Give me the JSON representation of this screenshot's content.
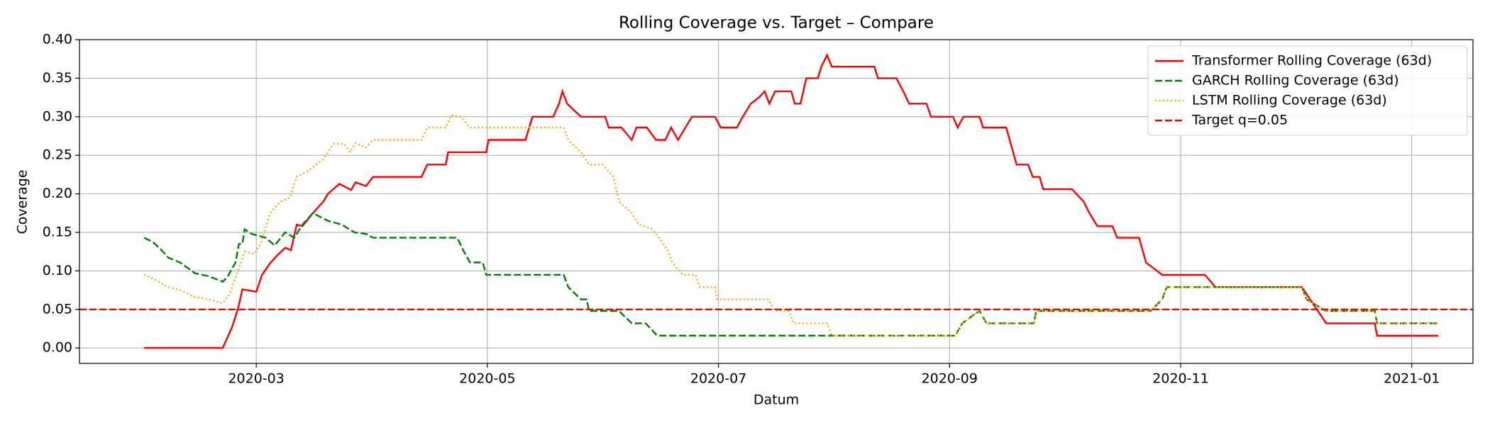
{
  "chart_data": {
    "type": "line",
    "title": "Rolling Coverage vs. Target – Compare",
    "xlabel": "Datum",
    "ylabel": "Coverage",
    "xlim": [
      1.47,
      13.53
    ],
    "xticks": [
      {
        "value": 3,
        "label": "2020-03"
      },
      {
        "value": 5,
        "label": "2020-05"
      },
      {
        "value": 7,
        "label": "2020-07"
      },
      {
        "value": 9,
        "label": "2020-09"
      },
      {
        "value": 11,
        "label": "2020-11"
      },
      {
        "value": 13,
        "label": "2021-01"
      }
    ],
    "ylim": [
      -0.02,
      0.4
    ],
    "yticks": [
      {
        "value": 0,
        "label": "0.00"
      },
      {
        "value": 0.05,
        "label": "0.05"
      },
      {
        "value": 0.1,
        "label": "0.10"
      },
      {
        "value": 0.15,
        "label": "0.15"
      },
      {
        "value": 0.2,
        "label": "0.20"
      },
      {
        "value": 0.25,
        "label": "0.25"
      },
      {
        "value": 0.3,
        "label": "0.30"
      },
      {
        "value": 0.35,
        "label": "0.35"
      },
      {
        "value": 0.4,
        "label": "0.40"
      }
    ],
    "grid": true,
    "legend": "upper right",
    "series": [
      {
        "name": "Transformer Rolling Coverage (63d)",
        "color": "#ff0000",
        "style": "solid",
        "x": [
          2.03,
          2.71,
          2.79,
          2.84,
          2.88,
          3.0,
          3.05,
          3.12,
          3.18,
          3.25,
          3.3,
          3.35,
          3.4,
          3.49,
          3.58,
          3.62,
          3.72,
          3.82,
          3.86,
          3.95,
          4.01,
          4.43,
          4.48,
          4.64,
          4.66,
          4.99,
          5.01,
          5.33,
          5.39,
          5.57,
          5.62,
          5.65,
          5.69,
          5.81,
          6.02,
          6.05,
          6.16,
          6.25,
          6.29,
          6.38,
          6.46,
          6.54,
          6.59,
          6.65,
          6.77,
          6.97,
          7.02,
          7.16,
          7.21,
          7.28,
          7.35,
          7.4,
          7.44,
          7.49,
          7.63,
          7.66,
          7.71,
          7.76,
          7.86,
          7.89,
          7.94,
          7.98,
          8.35,
          8.38,
          8.54,
          8.6,
          8.65,
          8.8,
          8.84,
          9.03,
          9.07,
          9.12,
          9.26,
          9.29,
          9.49,
          9.58,
          9.68,
          9.72,
          9.78,
          9.81,
          10.06,
          10.16,
          10.21,
          10.28,
          10.41,
          10.45,
          10.64,
          10.7,
          10.84,
          11.21,
          11.3,
          12.05,
          12.12,
          12.26,
          12.68,
          12.7,
          13.23
        ],
        "values": [
          0,
          0,
          0.027,
          0.05,
          0.076,
          0.073,
          0.095,
          0.11,
          0.12,
          0.13,
          0.127,
          0.16,
          0.158,
          0.175,
          0.19,
          0.2,
          0.213,
          0.205,
          0.215,
          0.21,
          0.222,
          0.222,
          0.238,
          0.238,
          0.254,
          0.254,
          0.27,
          0.27,
          0.3,
          0.3,
          0.317,
          0.333,
          0.317,
          0.3,
          0.3,
          0.286,
          0.286,
          0.27,
          0.286,
          0.286,
          0.27,
          0.27,
          0.286,
          0.27,
          0.3,
          0.3,
          0.286,
          0.286,
          0.3,
          0.317,
          0.325,
          0.333,
          0.317,
          0.333,
          0.333,
          0.317,
          0.317,
          0.35,
          0.35,
          0.365,
          0.38,
          0.365,
          0.365,
          0.35,
          0.35,
          0.333,
          0.317,
          0.317,
          0.3,
          0.3,
          0.286,
          0.3,
          0.3,
          0.286,
          0.286,
          0.238,
          0.238,
          0.222,
          0.222,
          0.206,
          0.206,
          0.19,
          0.175,
          0.158,
          0.158,
          0.143,
          0.143,
          0.111,
          0.095,
          0.095,
          0.079,
          0.079,
          0.063,
          0.032,
          0.032,
          0.016,
          0.016
        ]
      },
      {
        "name": "GARCH Rolling Coverage (63d)",
        "color": "#008000",
        "style": "dashed",
        "x": [
          2.03,
          2.11,
          2.18,
          2.24,
          2.34,
          2.47,
          2.59,
          2.71,
          2.75,
          2.82,
          2.85,
          2.88,
          2.9,
          2.96,
          3.08,
          3.16,
          3.25,
          3.33,
          3.4,
          3.49,
          3.62,
          3.74,
          3.85,
          3.95,
          4.01,
          4.74,
          4.79,
          4.85,
          4.96,
          4.99,
          5.66,
          5.7,
          5.81,
          5.86,
          5.88,
          6.14,
          6.25,
          6.37,
          6.47,
          9.05,
          9.11,
          9.21,
          9.26,
          9.32,
          9.73,
          9.75,
          10.74,
          10.84,
          10.88,
          12.05,
          12.09,
          12.26,
          12.68,
          12.7,
          13.23
        ],
        "values": [
          0.143,
          0.137,
          0.127,
          0.117,
          0.111,
          0.097,
          0.093,
          0.086,
          0.092,
          0.111,
          0.135,
          0.135,
          0.154,
          0.148,
          0.143,
          0.133,
          0.15,
          0.143,
          0.16,
          0.175,
          0.165,
          0.16,
          0.15,
          0.148,
          0.143,
          0.143,
          0.127,
          0.111,
          0.111,
          0.095,
          0.095,
          0.079,
          0.063,
          0.063,
          0.048,
          0.048,
          0.032,
          0.032,
          0.016,
          0.016,
          0.032,
          0.043,
          0.048,
          0.032,
          0.032,
          0.048,
          0.048,
          0.063,
          0.079,
          0.079,
          0.063,
          0.048,
          0.048,
          0.032,
          0.032
        ]
      },
      {
        "name": "LSTM Rolling Coverage (63d)",
        "color": "#ffa500",
        "style": "dotted",
        "x": [
          2.03,
          2.11,
          2.22,
          2.34,
          2.47,
          2.59,
          2.71,
          2.77,
          2.84,
          2.9,
          2.98,
          3.04,
          3.12,
          3.21,
          3.29,
          3.35,
          3.45,
          3.58,
          3.67,
          3.76,
          3.81,
          3.86,
          3.95,
          4.01,
          4.43,
          4.48,
          4.64,
          4.69,
          4.77,
          4.85,
          5.66,
          5.7,
          5.81,
          5.88,
          6.0,
          6.09,
          6.14,
          6.25,
          6.31,
          6.42,
          6.5,
          6.56,
          6.6,
          6.69,
          6.8,
          6.84,
          6.97,
          6.99,
          7.43,
          7.49,
          7.61,
          7.65,
          7.94,
          7.98,
          9.05,
          9.11,
          9.21,
          9.26,
          9.32,
          9.73,
          9.75,
          10.74,
          10.84,
          10.88,
          12.05,
          12.09,
          12.26,
          12.68,
          12.7,
          13.23
        ],
        "values": [
          0.095,
          0.09,
          0.08,
          0.075,
          0.066,
          0.063,
          0.058,
          0.07,
          0.1,
          0.125,
          0.122,
          0.135,
          0.175,
          0.19,
          0.195,
          0.222,
          0.23,
          0.245,
          0.265,
          0.265,
          0.254,
          0.266,
          0.26,
          0.27,
          0.27,
          0.286,
          0.286,
          0.302,
          0.3,
          0.286,
          0.286,
          0.27,
          0.254,
          0.238,
          0.238,
          0.222,
          0.19,
          0.175,
          0.16,
          0.155,
          0.14,
          0.127,
          0.111,
          0.095,
          0.095,
          0.079,
          0.079,
          0.063,
          0.063,
          0.048,
          0.048,
          0.032,
          0.032,
          0.016,
          0.016,
          0.032,
          0.043,
          0.048,
          0.032,
          0.032,
          0.048,
          0.048,
          0.063,
          0.079,
          0.079,
          0.063,
          0.048,
          0.048,
          0.032,
          0.032
        ]
      }
    ],
    "reference_lines": [
      {
        "name": "Target q=0.05",
        "value": 0.05,
        "color": "#ff0000",
        "style": "dashed"
      }
    ]
  }
}
